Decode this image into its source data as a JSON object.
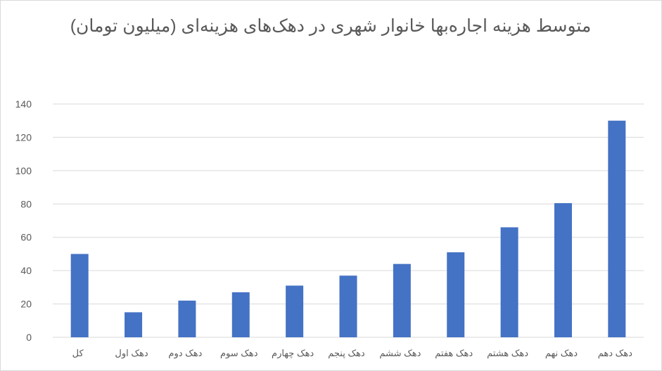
{
  "chart_data": {
    "type": "bar",
    "title": "متوسط هزینه اجاره‌بها خانوار شهری در دهک‌های هزینه‌ای (میلیون تومان)",
    "xlabel": "",
    "ylabel": "",
    "categories": [
      "کل",
      "دهک اول",
      "دهک دوم",
      "دهک سوم",
      "دهک چهارم",
      "دهک پنجم",
      "دهک ششم",
      "دهک هفتم",
      "دهک هشتم",
      "دهک نهم",
      "دهک دهم"
    ],
    "values": [
      50,
      15,
      22,
      27,
      31,
      37,
      44,
      51,
      66,
      80.5,
      130
    ],
    "ylim": [
      0,
      140
    ],
    "yticks": [
      0,
      20,
      40,
      60,
      80,
      100,
      120,
      140
    ],
    "grid": true,
    "legend": "none",
    "bar_color": "#4472C4",
    "grid_color": "#d9d9d9"
  }
}
